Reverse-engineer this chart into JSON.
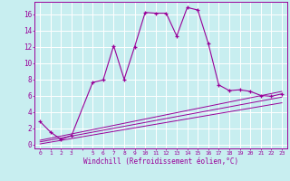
{
  "xlabel": "Windchill (Refroidissement éolien,°C)",
  "ylim": [
    -0.5,
    17.5
  ],
  "xlim": [
    -0.5,
    23.5
  ],
  "y_ticks": [
    0,
    2,
    4,
    6,
    8,
    10,
    12,
    14,
    16
  ],
  "background_color": "#c8eef0",
  "grid_color": "#ffffff",
  "line_color": "#990099",
  "line1_x": [
    0,
    1,
    2,
    3,
    5,
    6,
    7,
    8,
    9,
    10,
    11,
    12,
    13,
    14,
    15,
    16,
    17,
    18,
    19,
    20,
    21,
    22,
    23
  ],
  "line1_y": [
    2.8,
    1.5,
    0.6,
    1.1,
    7.6,
    7.9,
    12.1,
    8.0,
    12.0,
    16.2,
    16.1,
    16.1,
    13.3,
    16.8,
    16.5,
    12.4,
    7.3,
    6.6,
    6.7,
    6.5,
    6.0,
    5.9,
    6.2
  ],
  "line2_x": [
    0,
    23
  ],
  "line2_y": [
    0.5,
    6.5
  ],
  "line3_x": [
    0,
    23
  ],
  "line3_y": [
    0.3,
    5.8
  ],
  "line4_x": [
    0,
    23
  ],
  "line4_y": [
    0.05,
    5.1
  ]
}
